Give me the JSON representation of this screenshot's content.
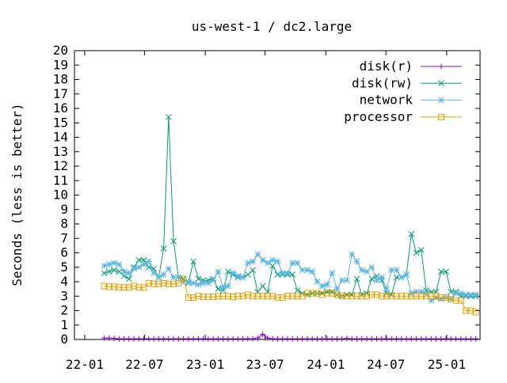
{
  "chart_data": {
    "type": "line",
    "title": "us-west-1 / dc2.large",
    "xlabel": "",
    "ylabel": "Seconds (less is better)",
    "x_tick_labels": [
      "22-01",
      "22-07",
      "23-01",
      "23-07",
      "24-01",
      "24-07",
      "25-01"
    ],
    "x_ticks": [
      "2022-01-01",
      "2022-07-01",
      "2023-01-01",
      "2023-07-01",
      "2024-01-01",
      "2024-07-01",
      "2025-01-01"
    ],
    "xlim": [
      "2021-12-01",
      "2025-04-12"
    ],
    "ylim": [
      0,
      20
    ],
    "y_ticks": [
      0,
      1,
      2,
      3,
      4,
      5,
      6,
      7,
      8,
      9,
      10,
      11,
      12,
      13,
      14,
      15,
      16,
      17,
      18,
      19,
      20
    ],
    "grid": false,
    "legend_position": "top-right",
    "x": [
      "2022-03-01",
      "2022-03-16",
      "2022-03-31",
      "2022-04-15",
      "2022-04-30",
      "2022-05-15",
      "2022-05-30",
      "2022-06-14",
      "2022-06-29",
      "2022-07-14",
      "2022-07-29",
      "2022-08-13",
      "2022-08-28",
      "2022-09-12",
      "2022-09-27",
      "2022-10-12",
      "2022-10-27",
      "2022-11-11",
      "2022-11-26",
      "2022-12-11",
      "2022-12-26",
      "2023-01-10",
      "2023-01-25",
      "2023-02-09",
      "2023-02-24",
      "2023-03-11",
      "2023-03-26",
      "2023-04-10",
      "2023-04-25",
      "2023-05-10",
      "2023-05-25",
      "2023-06-09",
      "2023-06-24",
      "2023-07-09",
      "2023-07-24",
      "2023-08-08",
      "2023-08-23",
      "2023-09-07",
      "2023-09-22",
      "2023-10-07",
      "2023-10-22",
      "2023-11-06",
      "2023-11-21",
      "2023-12-06",
      "2023-12-21",
      "2024-01-05",
      "2024-01-20",
      "2024-02-04",
      "2024-02-19",
      "2024-03-05",
      "2024-03-20",
      "2024-04-04",
      "2024-04-19",
      "2024-05-04",
      "2024-05-19",
      "2024-06-03",
      "2024-06-18",
      "2024-07-03",
      "2024-07-18",
      "2024-08-02",
      "2024-08-17",
      "2024-09-01",
      "2024-09-16",
      "2024-10-01",
      "2024-10-16",
      "2024-10-31",
      "2024-11-15",
      "2024-11-30",
      "2024-12-15",
      "2024-12-30",
      "2025-01-14",
      "2025-01-29",
      "2025-02-13",
      "2025-02-28",
      "2025-03-15",
      "2025-03-30"
    ],
    "series": [
      {
        "name": "disk(r)",
        "color": "#9400d3",
        "marker": "plus",
        "values": [
          0.1,
          0.1,
          0.08,
          0.05,
          0.05,
          0.05,
          0.05,
          0.05,
          0.05,
          0.05,
          0.05,
          0.05,
          0.05,
          0.05,
          0.05,
          0.05,
          0.05,
          0.05,
          0.05,
          0.05,
          0.05,
          0.05,
          0.05,
          0.05,
          0.05,
          0.05,
          0.05,
          0.05,
          0.05,
          0.05,
          0.05,
          0.1,
          0.35,
          0.1,
          0.05,
          0.05,
          0.05,
          0.05,
          0.05,
          0.05,
          0.05,
          0.05,
          0.05,
          0.05,
          0.05,
          0.05,
          0.05,
          0.05,
          0.05,
          0.08,
          0.05,
          0.05,
          0.05,
          0.05,
          0.05,
          0.05,
          0.05,
          0.05,
          0.05,
          0.05,
          0.05,
          0.05,
          0.05,
          0.05,
          0.05,
          0.05,
          0.05,
          0.05,
          0.05,
          0.05,
          0.05,
          0.05,
          0.05,
          0.05,
          0.05,
          0.05
        ]
      },
      {
        "name": "disk(rw)",
        "color": "#009e73",
        "marker": "cross",
        "values": [
          4.6,
          4.7,
          4.8,
          4.7,
          4.4,
          4.2,
          5.0,
          5.5,
          5.5,
          5.0,
          4.9,
          4.3,
          6.3,
          15.4,
          6.8,
          4.3,
          4.2,
          3.9,
          5.4,
          4.2,
          4.1,
          4.1,
          4.2,
          3.5,
          3.4,
          4.7,
          4.5,
          4.3,
          4.3,
          4.5,
          4.8,
          3.3,
          3.7,
          3.3,
          5.1,
          4.5,
          4.5,
          4.5,
          4.5,
          3.4,
          3.2,
          3.1,
          3.2,
          3.2,
          3.2,
          3.3,
          3.3,
          3.1,
          3.0,
          3.1,
          3.1,
          4.2,
          3.1,
          3.2,
          4.2,
          4.4,
          4.1,
          3.2,
          3.1,
          4.3,
          4.3,
          4.5,
          7.3,
          6.0,
          6.2,
          3.4,
          3.3,
          3.3,
          4.7,
          4.7,
          3.3,
          3.3,
          3.0,
          3.0,
          3.0,
          3.0
        ]
      },
      {
        "name": "network",
        "color": "#56b4e9",
        "marker": "star",
        "values": [
          5.1,
          5.2,
          5.3,
          5.2,
          4.7,
          4.6,
          4.9,
          5.0,
          5.2,
          5.4,
          4.6,
          4.3,
          4.5,
          4.9,
          4.3,
          4.3,
          4.0,
          4.0,
          3.9,
          3.8,
          3.9,
          3.9,
          4.1,
          4.7,
          3.6,
          3.7,
          4.6,
          4.4,
          4.3,
          5.3,
          5.4,
          5.9,
          5.5,
          5.3,
          5.5,
          5.4,
          4.6,
          4.6,
          5.3,
          5.3,
          4.8,
          4.8,
          4.7,
          4.0,
          3.7,
          3.8,
          4.6,
          3.5,
          4.1,
          4.1,
          5.9,
          5.4,
          4.8,
          4.7,
          5.0,
          4.1,
          4.3,
          3.5,
          4.8,
          4.8,
          4.3,
          4.5,
          3.2,
          3.3,
          3.3,
          3.2,
          2.7,
          2.9,
          2.8,
          2.9,
          2.8,
          3.2,
          3.2,
          3.1,
          3.1,
          3.1
        ]
      },
      {
        "name": "processor",
        "color": "#e69f00",
        "marker": "square",
        "values": [
          3.7,
          3.65,
          3.65,
          3.6,
          3.6,
          3.6,
          3.7,
          3.6,
          3.6,
          3.9,
          3.85,
          3.85,
          3.9,
          3.85,
          3.85,
          3.9,
          4.2,
          2.9,
          2.9,
          3.0,
          2.95,
          2.95,
          2.95,
          3.0,
          3.0,
          3.0,
          2.95,
          3.0,
          3.0,
          3.1,
          3.0,
          3.0,
          3.0,
          3.0,
          3.0,
          2.9,
          2.9,
          3.0,
          3.0,
          3.0,
          3.0,
          3.2,
          3.2,
          3.2,
          3.1,
          3.2,
          3.2,
          3.1,
          3.0,
          3.0,
          3.0,
          3.0,
          3.0,
          3.0,
          3.1,
          3.1,
          3.0,
          3.0,
          3.0,
          3.0,
          3.0,
          3.0,
          3.0,
          3.0,
          3.0,
          3.0,
          3.0,
          3.0,
          2.9,
          2.9,
          2.8,
          2.7,
          2.7,
          2.0,
          2.0,
          1.9
        ]
      }
    ]
  }
}
